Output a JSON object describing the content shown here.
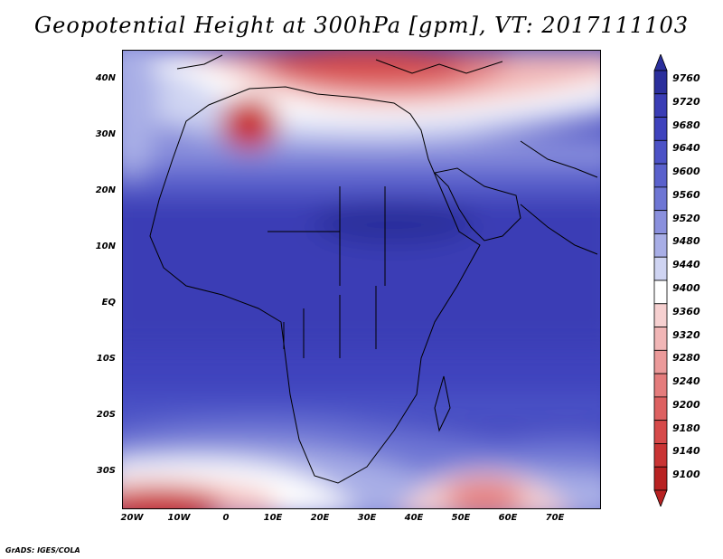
{
  "title": "Geopotential Height at 300hPa [gpm], VT: 2017111103",
  "credit": "GrADS: IGES/COLA",
  "lat_labels": [
    "40N",
    "30N",
    "20N",
    "10N",
    "EQ",
    "10S",
    "20S",
    "30S"
  ],
  "lon_labels": [
    "20W",
    "10W",
    "0",
    "10E",
    "20E",
    "30E",
    "40E",
    "50E",
    "60E",
    "70E"
  ],
  "colorbar": {
    "labels": [
      "9760",
      "9720",
      "9680",
      "9640",
      "9600",
      "9560",
      "9520",
      "9480",
      "9440",
      "9400",
      "9360",
      "9320",
      "9280",
      "9240",
      "9200",
      "9180",
      "9140",
      "9100"
    ],
    "colors": [
      "#2b2f9c",
      "#3a3db5",
      "#3f43bd",
      "#4c52c6",
      "#5a61cc",
      "#6e76d4",
      "#8a90dd",
      "#a8aee6",
      "#cfd4f2",
      "#ffffff",
      "#f6d0d0",
      "#f1b6b6",
      "#eb9a9a",
      "#e47c7c",
      "#dd6161",
      "#d64a4a",
      "#c93434",
      "#b82222"
    ]
  }
}
